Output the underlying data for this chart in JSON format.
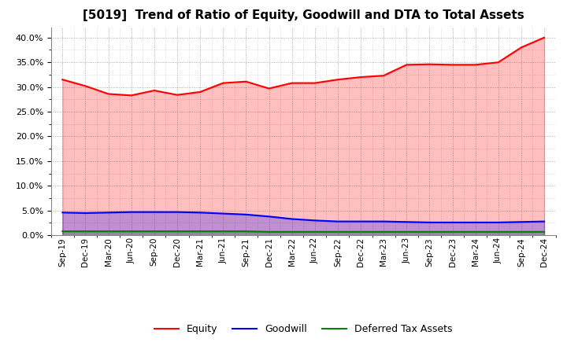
{
  "title": "[5019]  Trend of Ratio of Equity, Goodwill and DTA to Total Assets",
  "x_labels": [
    "Sep-19",
    "Dec-19",
    "Mar-20",
    "Jun-20",
    "Sep-20",
    "Dec-20",
    "Mar-21",
    "Jun-21",
    "Sep-21",
    "Dec-21",
    "Mar-22",
    "Jun-22",
    "Sep-22",
    "Dec-22",
    "Mar-23",
    "Jun-23",
    "Sep-23",
    "Dec-23",
    "Mar-24",
    "Jun-24",
    "Sep-24",
    "Dec-24"
  ],
  "equity": [
    0.315,
    0.302,
    0.286,
    0.283,
    0.293,
    0.284,
    0.29,
    0.308,
    0.311,
    0.297,
    0.308,
    0.308,
    0.315,
    0.32,
    0.323,
    0.345,
    0.346,
    0.345,
    0.345,
    0.35,
    0.38,
    0.4
  ],
  "goodwill": [
    0.046,
    0.045,
    0.046,
    0.047,
    0.047,
    0.047,
    0.046,
    0.044,
    0.042,
    0.038,
    0.033,
    0.03,
    0.028,
    0.028,
    0.028,
    0.027,
    0.026,
    0.026,
    0.026,
    0.026,
    0.027,
    0.028
  ],
  "dta": [
    0.008,
    0.008,
    0.008,
    0.008,
    0.008,
    0.008,
    0.008,
    0.008,
    0.008,
    0.007,
    0.007,
    0.007,
    0.007,
    0.007,
    0.007,
    0.007,
    0.007,
    0.007,
    0.007,
    0.007,
    0.007,
    0.007
  ],
  "equity_color": "#FF0000",
  "goodwill_color": "#0000FF",
  "dta_color": "#008000",
  "equity_fill": "#FFCCCC",
  "goodwill_fill": "#CCCCFF",
  "dta_fill": "#CCFFCC",
  "ylim": [
    0.0,
    0.42
  ],
  "yticks": [
    0.0,
    0.05,
    0.1,
    0.15,
    0.2,
    0.25,
    0.3,
    0.35,
    0.4
  ],
  "background_color": "#FFFFFF",
  "grid_color": "#999999",
  "legend_labels": [
    "Equity",
    "Goodwill",
    "Deferred Tax Assets"
  ],
  "title_fontsize": 11,
  "line_width": 1.5
}
